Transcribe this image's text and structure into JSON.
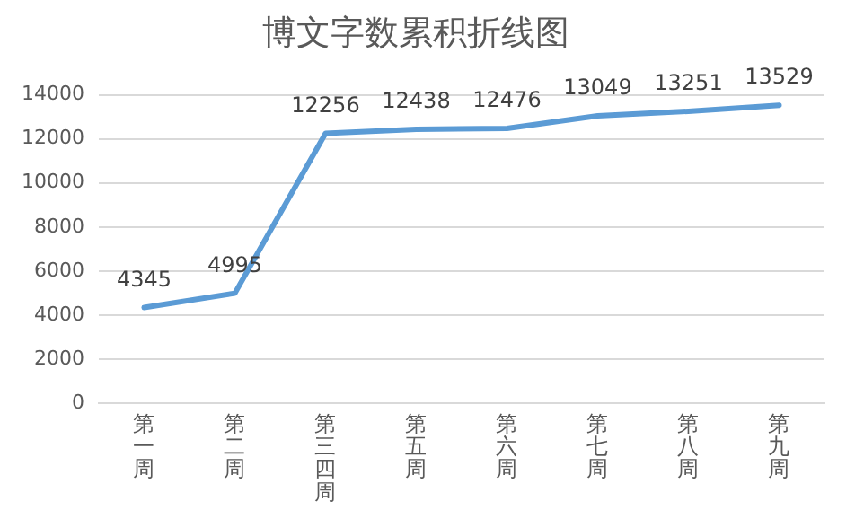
{
  "chart_data": {
    "type": "line",
    "title": "博文字数累积折线图",
    "categories": [
      "第一周",
      "第二周",
      "第三四周",
      "第五周",
      "第六周",
      "第七周",
      "第八周",
      "第九周"
    ],
    "series": [
      {
        "color": "#5b9bd5",
        "values": [
          4345,
          4995,
          12256,
          12438,
          12476,
          13049,
          13251,
          13529
        ]
      }
    ],
    "ylim": [
      0,
      14000
    ],
    "yticks": [
      0,
      2000,
      4000,
      6000,
      8000,
      10000,
      12000,
      14000
    ],
    "grid": "y",
    "legend": false,
    "marker": "none",
    "line_style": "solid",
    "data_labels": true
  }
}
